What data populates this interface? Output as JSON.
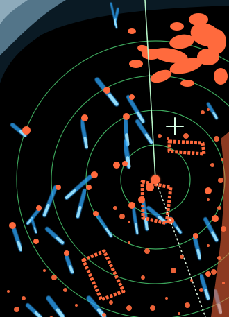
{
  "scene": {
    "subject": "radar-display",
    "colors": {
      "background": "#000000",
      "range_ring": "#46c06a",
      "heading_line": "#bfffd0",
      "ebl_dashed": "#e8ffe8",
      "cursor": "#d8ffe6",
      "target_echo": "#ff6a3d",
      "target_trail": "#2ea8ff",
      "trail_fade": "#9fe6ff",
      "outer_frame": "#7fb7d8"
    },
    "icons": {
      "cursor": "crosshair-icon",
      "own_ship": "own-ship-dot-icon"
    }
  }
}
